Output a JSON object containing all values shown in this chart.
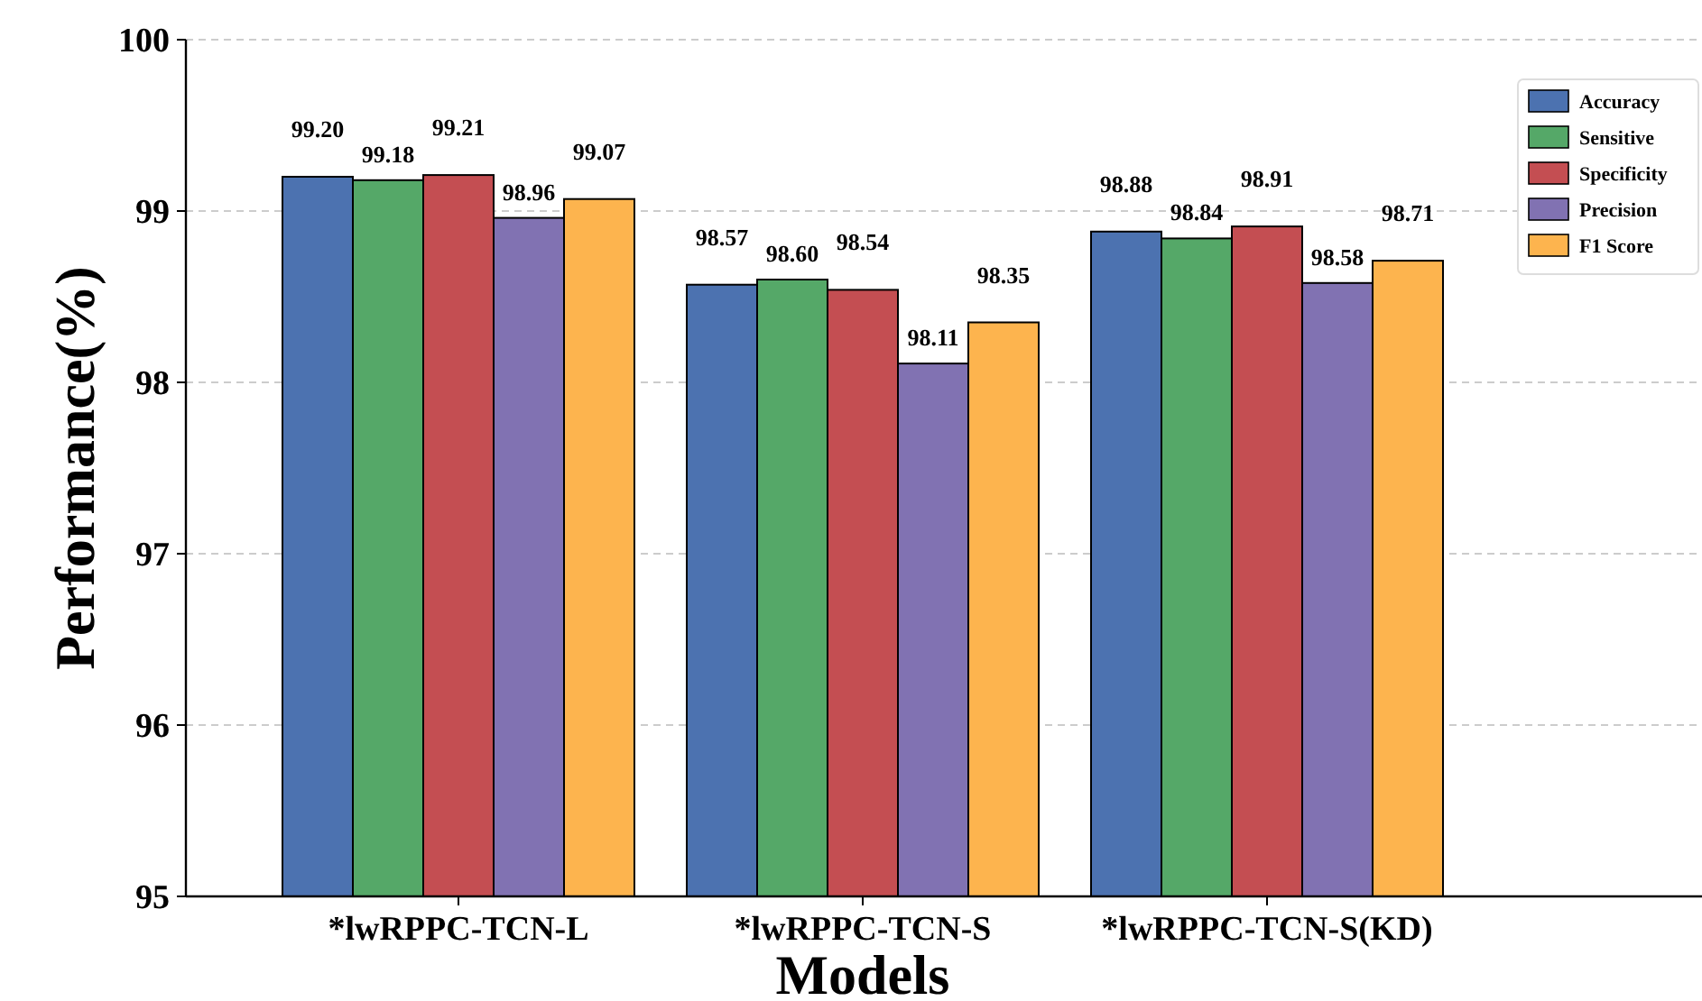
{
  "chart_data": {
    "type": "bar",
    "xlabel": "Models",
    "ylabel": "Performance(%)",
    "categories": [
      "*lwRPPC-TCN-L",
      "*lwRPPC-TCN-S",
      "*lwRPPC-TCN-S(KD)"
    ],
    "series": [
      {
        "name": "Accuracy",
        "color": "#4c72b0",
        "values": [
          99.2,
          98.57,
          98.88
        ],
        "value_labels": [
          "99.20",
          "98.57",
          "98.88"
        ]
      },
      {
        "name": "Sensitive",
        "color": "#55a868",
        "values": [
          99.18,
          98.6,
          98.84
        ],
        "value_labels": [
          "99.18",
          "98.60",
          "98.84"
        ]
      },
      {
        "name": "Specificity",
        "color": "#c44e52",
        "values": [
          99.21,
          98.54,
          98.91
        ],
        "value_labels": [
          "99.21",
          "98.54",
          "98.91"
        ]
      },
      {
        "name": "Precision",
        "color": "#8172b2",
        "values": [
          98.96,
          98.11,
          98.58
        ],
        "value_labels": [
          "98.96",
          "98.11",
          "98.58"
        ]
      },
      {
        "name": "F1 Score",
        "color": "#fdb44e",
        "values": [
          99.07,
          98.35,
          98.71
        ],
        "value_labels": [
          "99.07",
          "98.35",
          "98.71"
        ]
      }
    ],
    "ylim": [
      95,
      100
    ],
    "yticks": [
      95,
      96,
      97,
      98,
      99,
      100
    ],
    "grid": "y",
    "legend": "top right"
  }
}
